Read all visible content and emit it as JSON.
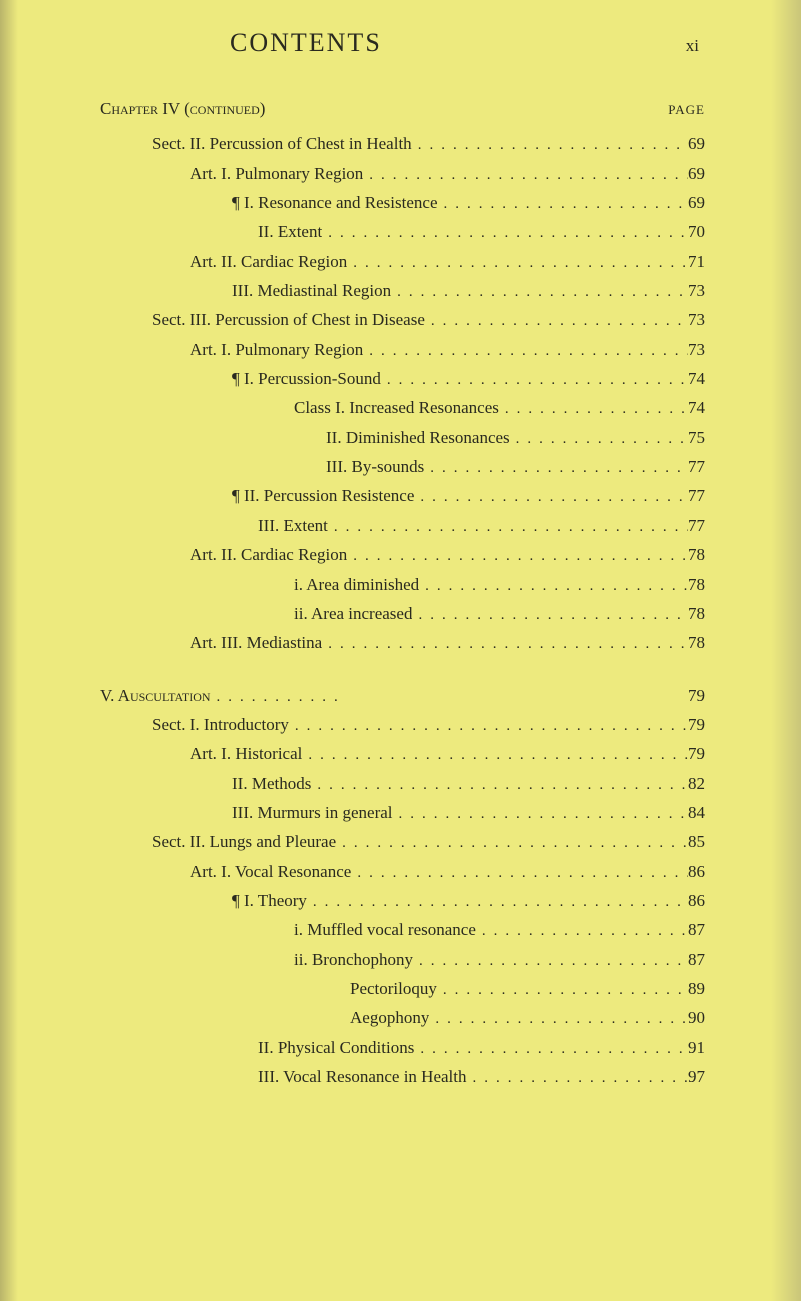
{
  "colors": {
    "background": "#edea7e",
    "text": "#2a2a1f"
  },
  "typography": {
    "body_font": "Georgia, serif",
    "body_size_pt": 12,
    "title_size_pt": 19
  },
  "header": {
    "title": "CONTENTS",
    "page_number": "xi"
  },
  "page_label": "PAGE",
  "chapter_line": "Chapter IV (continued)",
  "section5_label": "V. Auscultation",
  "entries": [
    {
      "indent": "i1",
      "text": "Sect. II. Percussion of Chest in Health",
      "page": "69"
    },
    {
      "indent": "i2",
      "text": "Art. I. Pulmonary Region",
      "page": "69"
    },
    {
      "indent": "i3",
      "text": "¶ I. Resonance and Resistence",
      "page": "69"
    },
    {
      "indent": "i4",
      "text": "II. Extent",
      "page": "70"
    },
    {
      "indent": "i2",
      "text": "Art. II. Cardiac Region",
      "page": "71"
    },
    {
      "indent": "i3",
      "text": "III. Mediastinal Region",
      "page": "73"
    },
    {
      "indent": "i1",
      "text": "Sect. III. Percussion of Chest in Disease",
      "page": "73"
    },
    {
      "indent": "i2",
      "text": "Art. I. Pulmonary Region",
      "page": "73"
    },
    {
      "indent": "i3",
      "text": "¶ I. Percussion-Sound",
      "page": "74"
    },
    {
      "indent": "i5",
      "text": "Class I. Increased Resonances",
      "page": "74"
    },
    {
      "indent": "i6",
      "text": "II. Diminished Resonances",
      "page": "75"
    },
    {
      "indent": "i6",
      "text": "III. By-sounds",
      "page": "77"
    },
    {
      "indent": "i3",
      "text": "¶ II. Percussion Resistence",
      "page": "77"
    },
    {
      "indent": "i4",
      "text": "III. Extent",
      "page": "77"
    },
    {
      "indent": "i2",
      "text": "Art. II. Cardiac Region",
      "page": "78"
    },
    {
      "indent": "i5",
      "text": "i. Area diminished",
      "page": "78"
    },
    {
      "indent": "i5",
      "text": "ii. Area increased",
      "page": "78"
    },
    {
      "indent": "i2",
      "text": "Art. III. Mediastina",
      "page": "78"
    }
  ],
  "entries2": [
    {
      "indent": "i0",
      "text": "",
      "page": "79"
    },
    {
      "indent": "i1",
      "text": "Sect. I. Introductory",
      "page": "79"
    },
    {
      "indent": "i2",
      "text": "Art. I. Historical",
      "page": "79"
    },
    {
      "indent": "i3",
      "text": "II. Methods",
      "page": "82"
    },
    {
      "indent": "i3",
      "text": "III. Murmurs in general",
      "page": "84"
    },
    {
      "indent": "i1",
      "text": "Sect. II. Lungs and Pleurae",
      "page": "85"
    },
    {
      "indent": "i2",
      "text": "Art. I. Vocal Resonance",
      "page": "86"
    },
    {
      "indent": "i3",
      "text": "¶ I. Theory",
      "page": "86"
    },
    {
      "indent": "i5",
      "text": "i. Muffled vocal resonance",
      "page": "87"
    },
    {
      "indent": "i5",
      "text": "ii. Bronchophony",
      "page": "87"
    },
    {
      "indent": "i7",
      "text": "Pectoriloquy",
      "page": "89"
    },
    {
      "indent": "i7",
      "text": "Aegophony",
      "page": "90"
    },
    {
      "indent": "i4",
      "text": "II. Physical Conditions",
      "page": "91"
    },
    {
      "indent": "i4",
      "text": "III. Vocal Resonance in Health",
      "page": "97"
    }
  ]
}
